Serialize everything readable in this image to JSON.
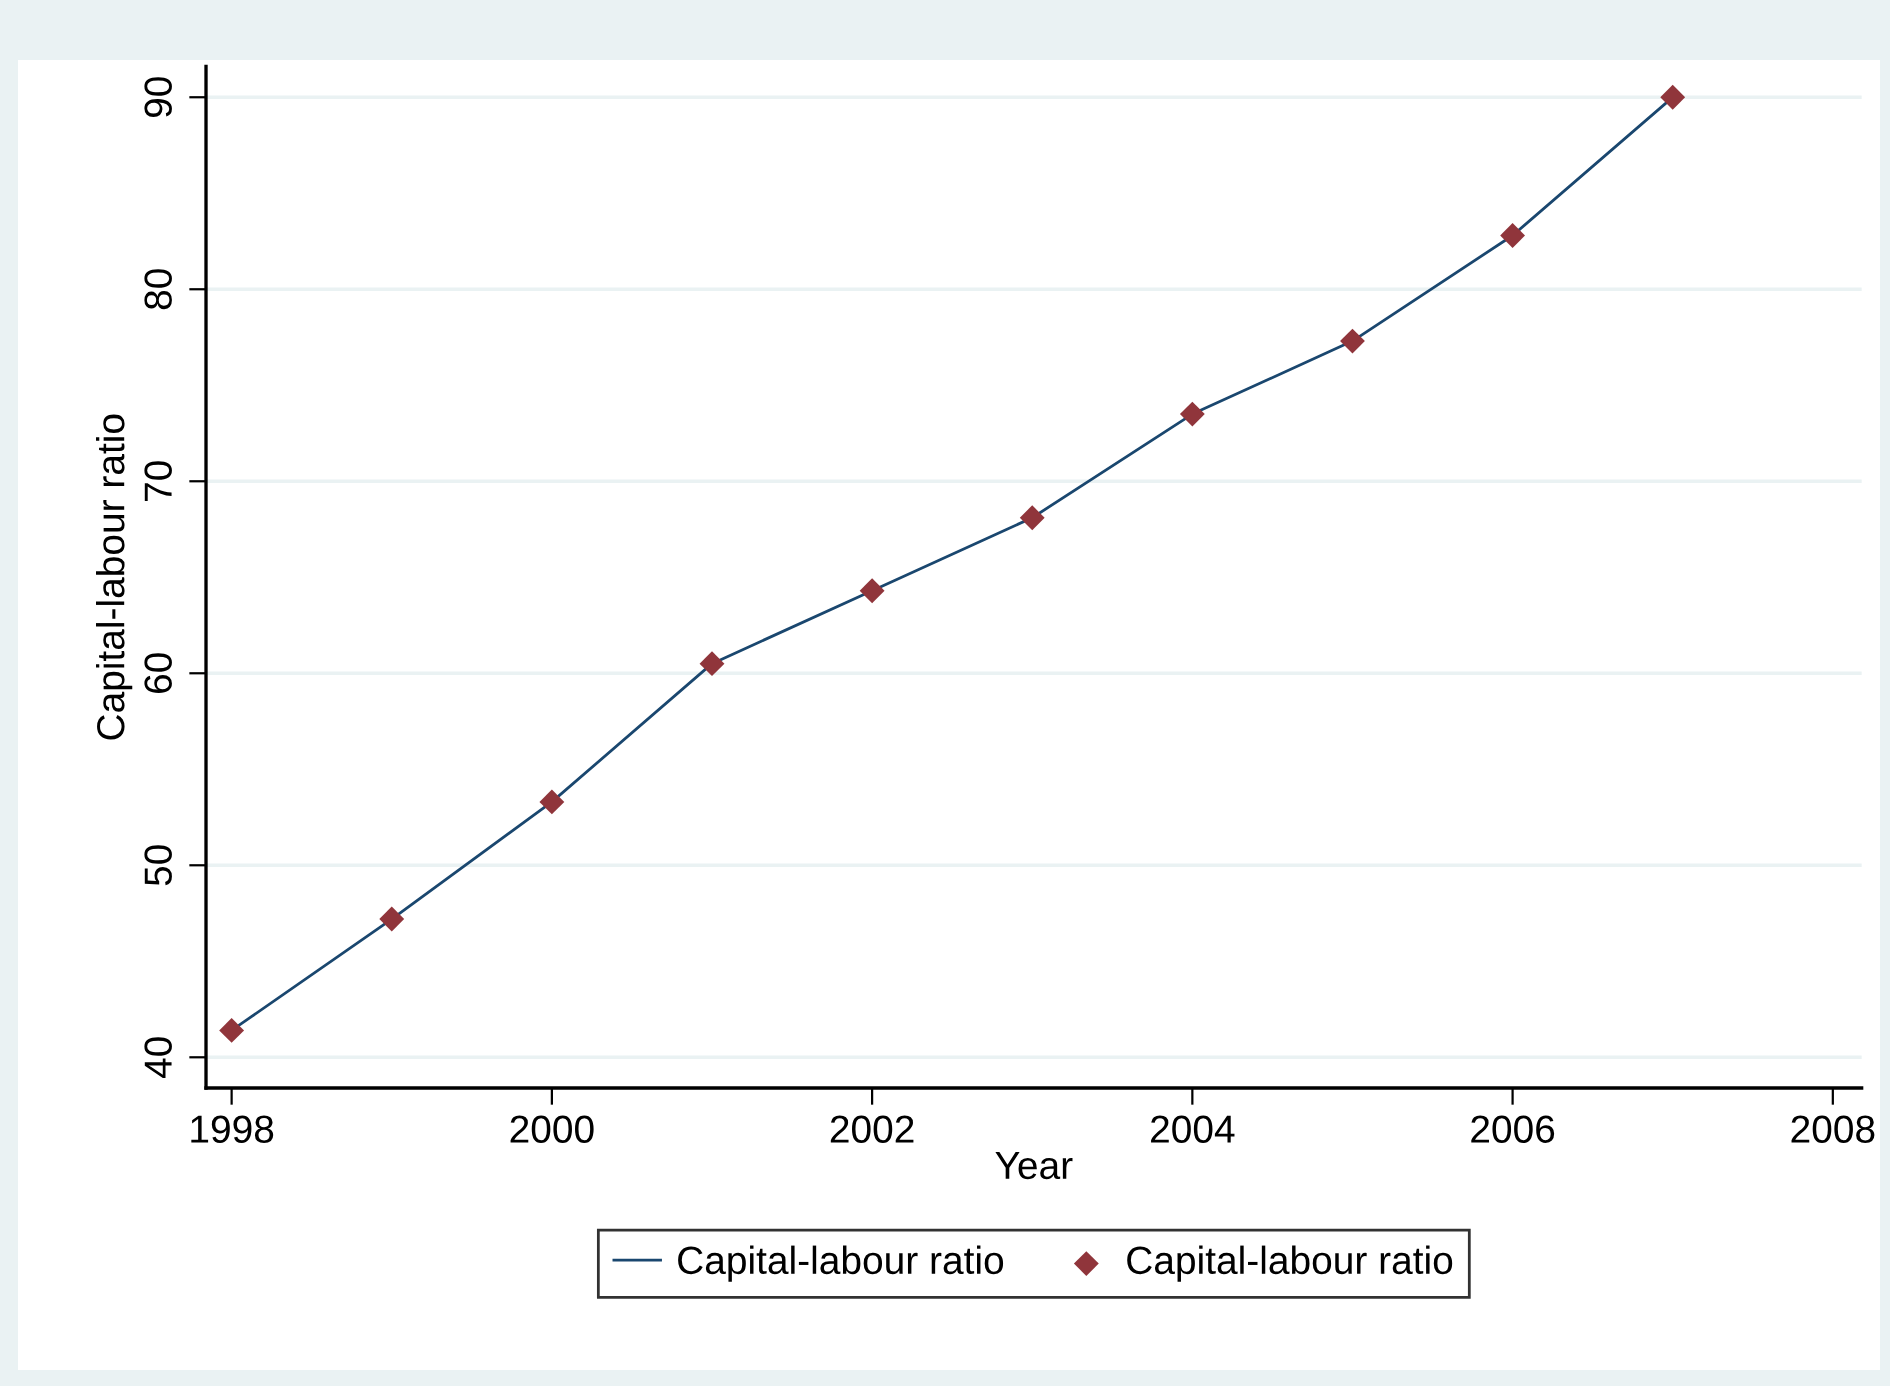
{
  "chart_data": {
    "type": "line",
    "xlabel": "Year",
    "ylabel": "Capital-labour ratio",
    "x": [
      1998,
      1999,
      2000,
      2001,
      2002,
      2003,
      2004,
      2005,
      2006,
      2007
    ],
    "series": [
      {
        "name": "Capital-labour ratio",
        "color": "#1a476f",
        "marker": "none",
        "line_style": "solid",
        "values": [
          41.4,
          47.2,
          53.3,
          60.5,
          64.3,
          68.1,
          73.5,
          77.3,
          82.8,
          90.0
        ]
      },
      {
        "name": "Capital-labour ratio",
        "type": "scatter",
        "color": "#90353b",
        "marker": "diamond",
        "values": [
          41.4,
          47.2,
          53.3,
          60.5,
          64.3,
          68.1,
          73.5,
          77.3,
          82.8,
          90.0
        ]
      }
    ],
    "xlim": [
      1997.84,
      2008.18
    ],
    "xticks": [
      1998,
      2000,
      2002,
      2004,
      2006,
      2008
    ],
    "ylim": [
      38.4,
      91.6
    ],
    "yticks": [
      40,
      50,
      60,
      70,
      80,
      90
    ],
    "grid": "y",
    "legend": "bottom"
  }
}
